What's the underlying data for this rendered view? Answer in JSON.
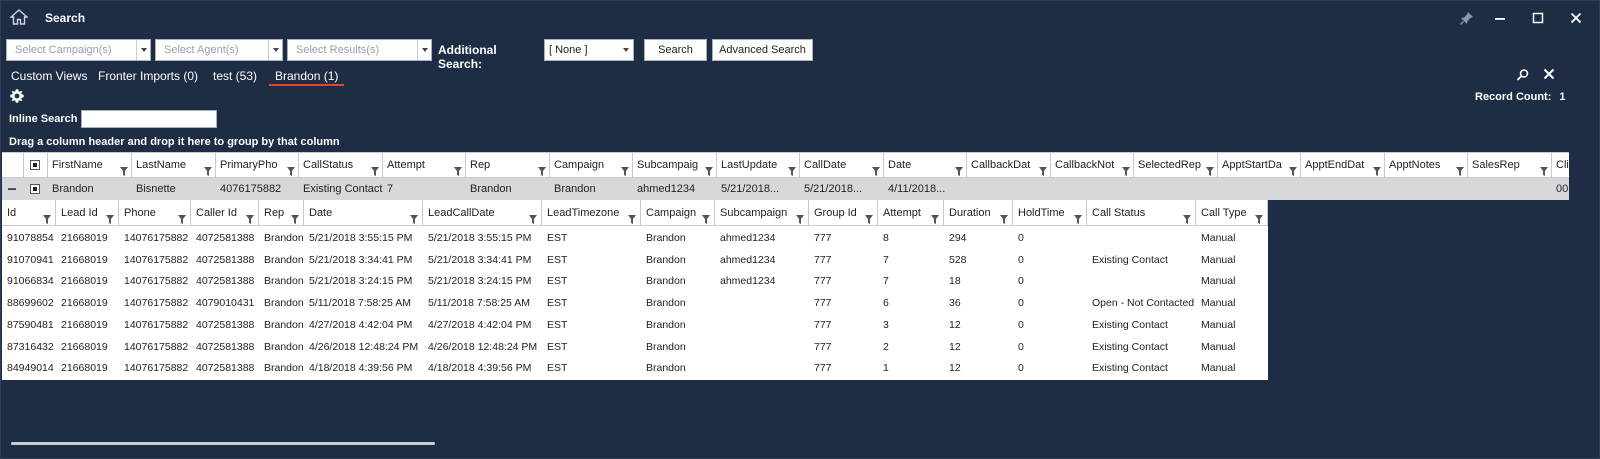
{
  "window": {
    "title": "Search"
  },
  "search": {
    "campaign_placeholder": "Select Campaign(s)",
    "agent_placeholder": "Select Agent(s)",
    "results_placeholder": "Select Results(s)",
    "additional_label": "Additional Search:",
    "additional_value": "[ None ]",
    "search_button": "Search",
    "advanced_button": "Advanced Search"
  },
  "views": [
    "Custom Views",
    "Fronter Imports (0)",
    "test (53)",
    "Brandon (1)"
  ],
  "record_count_label": "Record Count:",
  "record_count_value": "1",
  "inline_search_label": "Inline Search",
  "group_hint": "Drag a column header and drop it here to group by that column",
  "main_columns": [
    "FirstName",
    "LastName",
    "PrimaryPho",
    "CallStatus",
    "Attempt",
    "Rep",
    "Campaign",
    "Subcampaig",
    "LastUpdate",
    "CallDate",
    "Date",
    "CallbackDat",
    "CallbackNot",
    "SelectedRep",
    "ApptStartDa",
    "ApptEndDat",
    "ApptNotes",
    "SalesRep",
    "Cli"
  ],
  "main_row": [
    "Brandon",
    "Bisnette",
    "4076175882",
    "Existing Contact",
    "7",
    "Brandon",
    "Brandon",
    "ahmed1234",
    "5/21/2018...",
    "5/21/2018...",
    "4/11/2018...",
    "",
    "",
    "",
    "",
    "",
    "",
    "",
    "00"
  ],
  "detail_columns": [
    "Id",
    "Lead Id",
    "Phone",
    "Caller Id",
    "Rep",
    "Date",
    "LeadCallDate",
    "LeadTimezone",
    "Campaign",
    "Subcampaign",
    "Group Id",
    "Attempt",
    "Duration",
    "HoldTime",
    "Call Status",
    "Call Type"
  ],
  "detail_rows": [
    [
      "91078854",
      "21668019",
      "14076175882",
      "4072581388",
      "Brandon",
      "5/21/2018 3:55:15 PM",
      "5/21/2018 3:55:15 PM",
      "EST",
      "Brandon",
      "ahmed1234",
      "777",
      "8",
      "294",
      "0",
      "",
      "Manual"
    ],
    [
      "91070941",
      "21668019",
      "14076175882",
      "4072581388",
      "Brandon",
      "5/21/2018 3:34:41 PM",
      "5/21/2018 3:34:41 PM",
      "EST",
      "Brandon",
      "ahmed1234",
      "777",
      "7",
      "528",
      "0",
      "Existing Contact",
      "Manual"
    ],
    [
      "91066834",
      "21668019",
      "14076175882",
      "4072581388",
      "Brandon",
      "5/21/2018 3:24:15 PM",
      "5/21/2018 3:24:15 PM",
      "EST",
      "Brandon",
      "ahmed1234",
      "777",
      "7",
      "18",
      "0",
      "",
      "Manual"
    ],
    [
      "88699602",
      "21668019",
      "14076175882",
      "4079010431",
      "Brandon",
      "5/11/2018 7:58:25 AM",
      "5/11/2018 7:58:25 AM",
      "EST",
      "Brandon",
      "",
      "777",
      "6",
      "36",
      "0",
      "Open - Not Contacted",
      "Manual"
    ],
    [
      "87590481",
      "21668019",
      "14076175882",
      "4072581388",
      "Brandon",
      "4/27/2018 4:42:04 PM",
      "4/27/2018 4:42:04 PM",
      "EST",
      "Brandon",
      "",
      "777",
      "3",
      "12",
      "0",
      "Existing Contact",
      "Manual"
    ],
    [
      "87316432",
      "21668019",
      "14076175882",
      "4072581388",
      "Brandon",
      "4/26/2018 12:48:24 PM",
      "4/26/2018 12:48:24 PM",
      "EST",
      "Brandon",
      "",
      "777",
      "2",
      "12",
      "0",
      "Existing Contact",
      "Manual"
    ],
    [
      "84949014",
      "21668019",
      "14076175882",
      "4072581388",
      "Brandon",
      "4/18/2018 4:39:56 PM",
      "4/18/2018 4:39:56 PM",
      "EST",
      "Brandon",
      "",
      "777",
      "1",
      "12",
      "0",
      "Existing Contact",
      "Manual"
    ]
  ]
}
